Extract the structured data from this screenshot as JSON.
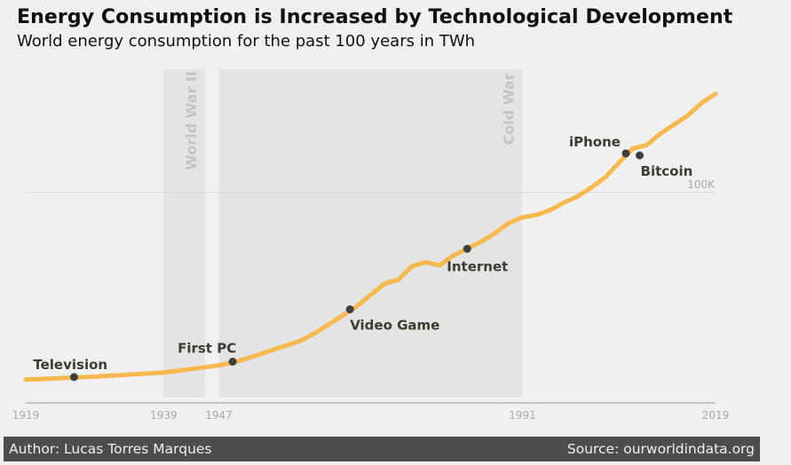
{
  "title": "Energy Consumption is Increased by Technological Development",
  "subtitle": "World energy consumption for the past 100 years in TWh",
  "footer": {
    "author": "Author: Lucas Torres Marques",
    "source": "Source: ourworldindata.org"
  },
  "colors": {
    "background": "#f0f0f0",
    "line": "#f7b84e",
    "marker": "#3f3f3f",
    "event_text": "#3c3c30",
    "shade": "#e4e4e4",
    "shade_text": "#c4c4c4",
    "axis": "#a9a9a9",
    "footer_bg": "#4d4d4d"
  },
  "chart_data": {
    "type": "line",
    "xlabel": "",
    "ylabel": "",
    "xlim": [
      1919,
      2019
    ],
    "ylim": [
      0,
      160000
    ],
    "grid": {
      "horizontal_reference": 100000,
      "reference_label": "100K"
    },
    "x_ticks": [
      "1919",
      "1939",
      "1947",
      "1991",
      "2019"
    ],
    "periods": [
      {
        "label": "World War II",
        "start": 1939,
        "end": 1945
      },
      {
        "label": "Cold War",
        "start": 1947,
        "end": 1991
      }
    ],
    "series": [
      {
        "x": [
          1919,
          1921,
          1923,
          1925,
          1927,
          1929,
          1931,
          1933,
          1935,
          1937,
          1939,
          1941,
          1943,
          1945,
          1947,
          1949,
          1951,
          1953,
          1955,
          1957,
          1959,
          1961,
          1963,
          1965,
          1967,
          1969,
          1971,
          1973,
          1975,
          1977,
          1979,
          1981,
          1983,
          1985,
          1987,
          1989,
          1991,
          1993,
          1995,
          1997,
          1999,
          2001,
          2003,
          2005,
          2007,
          2009,
          2011,
          2013,
          2015,
          2017,
          2019
        ],
        "values": [
          8800,
          9000,
          9300,
          9600,
          9900,
          10200,
          10600,
          11000,
          11400,
          11800,
          12200,
          13000,
          13900,
          14800,
          15700,
          17100,
          19000,
          21200,
          23400,
          25600,
          27900,
          31600,
          35800,
          40100,
          44500,
          50000,
          55500,
          57400,
          64000,
          66000,
          64400,
          69200,
          72500,
          76000,
          80000,
          85000,
          87800,
          89000,
          91300,
          95000,
          98000,
          102300,
          107300,
          114400,
          121400,
          123000,
          128600,
          133000,
          137500,
          143600,
          148000
        ]
      }
    ],
    "events": [
      {
        "label": "Television",
        "year": 1926,
        "value": 10000
      },
      {
        "label": "First PC",
        "year": 1949,
        "value": 17500
      },
      {
        "label": "Video Game",
        "year": 1966,
        "value": 43000
      },
      {
        "label": "Internet",
        "year": 1983,
        "value": 72500
      },
      {
        "label": "iPhone",
        "year": 2006,
        "value": 119000
      },
      {
        "label": "Bitcoin",
        "year": 2008,
        "value": 118000
      }
    ]
  }
}
